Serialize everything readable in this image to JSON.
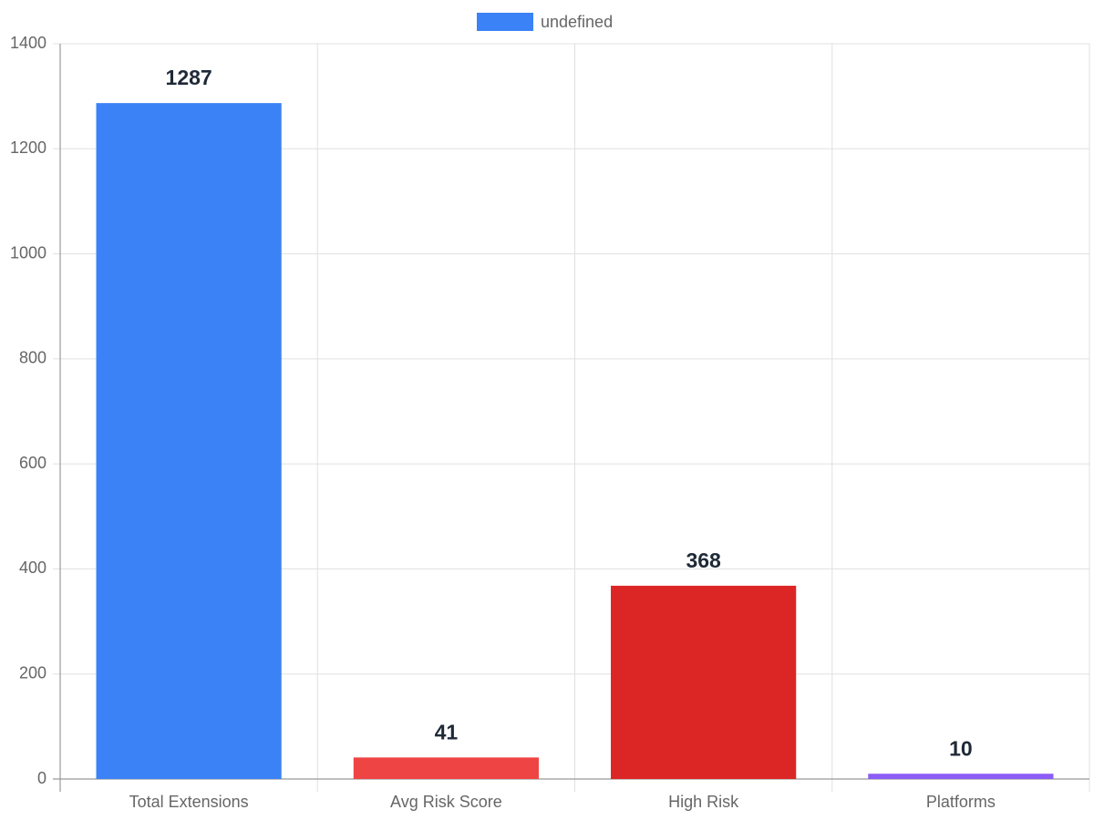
{
  "chart_data": {
    "type": "bar",
    "categories": [
      "Total Extensions",
      "Avg Risk Score",
      "High Risk",
      "Platforms"
    ],
    "series": [
      {
        "name": "undefined",
        "color": "#3b82f6",
        "colors": [
          "#3b82f6",
          "#ef4444",
          "#dc2626",
          "#8b5cf6"
        ],
        "values": [
          1287,
          41,
          368,
          10
        ]
      }
    ],
    "ylim": [
      0,
      1400
    ],
    "yticks": [
      0,
      200,
      400,
      600,
      800,
      1000,
      1200,
      1400
    ],
    "grid": true,
    "legend": "top"
  }
}
